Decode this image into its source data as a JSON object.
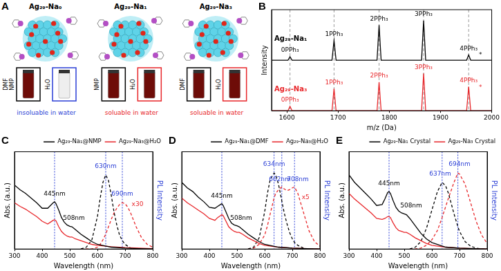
{
  "diagram": {
    "panel": "A",
    "items": [
      {
        "title": "Ag₂₉-Na₀",
        "color": "#2b3fd6",
        "caption": "insoluable in water",
        "vials": [
          {
            "solvents": [
              "DMF",
              "NMP"
            ],
            "soluble": true
          },
          {
            "solvents": [
              "H₂O"
            ],
            "soluble": false
          }
        ]
      },
      {
        "title": "Ag₂₉-Na₁",
        "color": "#e8262a",
        "caption": "soluable in water",
        "vials": [
          {
            "solvents": [
              "NMP"
            ],
            "soluble": true
          },
          {
            "solvents": [
              "H₂O"
            ],
            "soluble": true
          }
        ]
      },
      {
        "title": "Ag₂₉-Na₃",
        "color": "#e8262a",
        "caption": "soluable in water",
        "vials": [
          {
            "solvents": [
              "DMF"
            ],
            "soluble": true
          },
          {
            "solvents": [
              "H₂O"
            ],
            "soluble": true
          }
        ]
      }
    ]
  },
  "chart_data": [
    {
      "panel": "B",
      "type": "line",
      "x_label": "m/z (Da)",
      "y_label": "Intensity",
      "xlim": [
        1570,
        2000
      ],
      "xticks": [
        1600,
        1700,
        1800,
        1900,
        2000
      ],
      "ylim": [
        0,
        2.3
      ],
      "yticks": [],
      "grid": false,
      "tick_labels": "x",
      "vlines": [
        1606,
        1692,
        1780,
        1867,
        1955
      ],
      "series": [
        {
          "name": "Ag₂₉-Na₁",
          "color": "#000000",
          "x": [
            1570,
            1602,
            1606,
            1610,
            1688,
            1692,
            1696,
            1776,
            1780,
            1784,
            1863,
            1867,
            1871,
            1951,
            1955,
            1959,
            2000
          ],
          "values": [
            1.15,
            1.15,
            1.23,
            1.15,
            1.15,
            1.6,
            1.15,
            1.15,
            1.95,
            1.15,
            1.15,
            2.05,
            1.15,
            1.15,
            1.27,
            1.15,
            1.15
          ]
        },
        {
          "name": "Ag₂₉-Na₃",
          "color": "#e8262a",
          "x": [
            1570,
            1602,
            1606,
            1610,
            1688,
            1692,
            1696,
            1776,
            1780,
            1784,
            1863,
            1867,
            1871,
            1951,
            1955,
            1959,
            2000
          ],
          "values": [
            0,
            0,
            0.1,
            0,
            0,
            0.5,
            0,
            0,
            0.65,
            0,
            0,
            0.85,
            0,
            0,
            0.55,
            0,
            0
          ]
        }
      ],
      "annotations": [
        {
          "x": 1606,
          "y": 1.3,
          "text": "0PPh₃",
          "color": "#000000"
        },
        {
          "x": 1692,
          "y": 1.67,
          "text": "1PPh₃",
          "color": "#000000"
        },
        {
          "x": 1780,
          "y": 2.02,
          "text": "2PPh₃",
          "color": "#000000"
        },
        {
          "x": 1867,
          "y": 2.12,
          "text": "3PPh₃",
          "color": "#000000"
        },
        {
          "x": 1955,
          "y": 1.34,
          "text": "4PPh₃",
          "color": "#000000"
        },
        {
          "x": 1978,
          "y": 1.2,
          "text": "*",
          "color": "#000000"
        },
        {
          "x": 1606,
          "y": 0.17,
          "text": "0PPh₃",
          "color": "#e8262a"
        },
        {
          "x": 1692,
          "y": 0.57,
          "text": "1PPh₃",
          "color": "#e8262a"
        },
        {
          "x": 1780,
          "y": 0.72,
          "text": "2PPh₃",
          "color": "#e8262a"
        },
        {
          "x": 1867,
          "y": 0.92,
          "text": "3PPh₃",
          "color": "#e8262a"
        },
        {
          "x": 1955,
          "y": 0.62,
          "text": "4PPh₃",
          "color": "#e8262a"
        },
        {
          "x": 1978,
          "y": 0.45,
          "text": "*",
          "color": "#e8262a"
        }
      ]
    },
    {
      "panel": "C",
      "type": "line",
      "x_label": "Wavelength (nm)",
      "y_label": "Abs. (a.u.)",
      "y2_label": "PL Intensity",
      "xlim": [
        300,
        800
      ],
      "xticks": [
        300,
        400,
        500,
        600,
        700,
        800
      ],
      "ylim": [
        0,
        1.05
      ],
      "yticks": [],
      "y2lim": [
        0,
        1.05
      ],
      "y2ticks": [],
      "grid": false,
      "tick_labels": "x",
      "legend": "top-right",
      "vlines": [
        445,
        630,
        690
      ],
      "series": [
        {
          "color": "#000000",
          "line_style": "solid",
          "x": [
            300,
            320,
            340,
            360,
            380,
            400,
            420,
            430,
            440,
            445,
            450,
            460,
            470,
            480,
            490,
            500,
            508,
            520,
            540,
            560,
            580,
            600,
            650,
            700,
            750,
            800
          ],
          "values": [
            0.69,
            0.64,
            0.6,
            0.55,
            0.5,
            0.44,
            0.44,
            0.47,
            0.5,
            0.51,
            0.49,
            0.42,
            0.34,
            0.29,
            0.26,
            0.245,
            0.24,
            0.21,
            0.16,
            0.12,
            0.08,
            0.05,
            0.02,
            0.01,
            0.005,
            0
          ]
        },
        {
          "color": "#e8262a",
          "line_style": "solid",
          "x": [
            300,
            320,
            340,
            360,
            380,
            400,
            420,
            430,
            440,
            445,
            450,
            460,
            470,
            480,
            490,
            500,
            508,
            520,
            540,
            560,
            580,
            600,
            650,
            700,
            750,
            800
          ],
          "values": [
            0.5,
            0.46,
            0.43,
            0.39,
            0.35,
            0.3,
            0.27,
            0.29,
            0.31,
            0.315,
            0.305,
            0.24,
            0.19,
            0.16,
            0.14,
            0.13,
            0.13,
            0.11,
            0.09,
            0.07,
            0.05,
            0.04,
            0.025,
            0.015,
            0.01,
            0.005
          ]
        },
        {
          "name": "Ag₂₉-Na₁@NMP",
          "color": "#000000",
          "line_style": "dashed",
          "axis": "y2",
          "x": [
            540,
            560,
            580,
            600,
            610,
            620,
            630,
            640,
            650,
            660,
            670,
            680,
            690,
            700,
            710,
            720,
            740,
            760,
            780,
            800
          ],
          "values": [
            0,
            0.02,
            0.1,
            0.35,
            0.55,
            0.72,
            0.8,
            0.74,
            0.58,
            0.4,
            0.26,
            0.15,
            0.09,
            0.05,
            0.03,
            0.01,
            0,
            0,
            0,
            0
          ]
        },
        {
          "name": "Ag₂₉-Na₃@H₂O",
          "color": "#e8262a",
          "line_style": "dashed",
          "axis": "y2",
          "x": [
            540,
            560,
            580,
            600,
            610,
            620,
            630,
            640,
            650,
            660,
            670,
            680,
            690,
            700,
            710,
            720,
            740,
            760,
            780,
            800
          ],
          "values": [
            0,
            0,
            0,
            0.02,
            0.05,
            0.1,
            0.16,
            0.24,
            0.32,
            0.39,
            0.44,
            0.48,
            0.5,
            0.49,
            0.45,
            0.39,
            0.24,
            0.12,
            0.05,
            0.02
          ]
        }
      ],
      "annotations": [
        {
          "x": 445,
          "y": 0.56,
          "text": "445nm",
          "color": "#000000"
        },
        {
          "x": 515,
          "y": 0.3,
          "text": "508nm",
          "color": "#000000"
        },
        {
          "x": 630,
          "y": 0.86,
          "text": "630nm",
          "color": "#2b3fd6"
        },
        {
          "x": 690,
          "y": 0.56,
          "text": "690nm",
          "color": "#2b3fd6"
        },
        {
          "x": 745,
          "y": 0.45,
          "text": "x30",
          "color": "#e8262a"
        }
      ]
    },
    {
      "panel": "D",
      "type": "line",
      "x_label": "Wavelength (nm)",
      "y_label": "Abs. (a.u.)",
      "y2_label": "PL Intensity",
      "xlim": [
        300,
        800
      ],
      "xticks": [
        300,
        400,
        500,
        600,
        700,
        800
      ],
      "ylim": [
        0,
        1.05
      ],
      "yticks": [],
      "y2lim": [
        0,
        1.05
      ],
      "y2ticks": [],
      "grid": false,
      "tick_labels": "x",
      "legend": "top-right",
      "vlines": [
        445,
        634,
        662,
        708
      ],
      "series": [
        {
          "color": "#000000",
          "line_style": "solid",
          "x": [
            300,
            320,
            340,
            360,
            380,
            400,
            420,
            430,
            440,
            445,
            450,
            460,
            470,
            480,
            490,
            500,
            508,
            520,
            540,
            560,
            580,
            600,
            650,
            700,
            750,
            800
          ],
          "values": [
            0.72,
            0.66,
            0.62,
            0.56,
            0.51,
            0.45,
            0.44,
            0.46,
            0.48,
            0.49,
            0.47,
            0.4,
            0.33,
            0.28,
            0.26,
            0.25,
            0.24,
            0.21,
            0.16,
            0.12,
            0.08,
            0.05,
            0.02,
            0.01,
            0.005,
            0
          ]
        },
        {
          "color": "#e8262a",
          "line_style": "solid",
          "x": [
            300,
            320,
            340,
            360,
            380,
            400,
            420,
            430,
            440,
            445,
            450,
            460,
            470,
            480,
            490,
            500,
            508,
            520,
            540,
            560,
            580,
            600,
            650,
            700,
            750,
            800
          ],
          "values": [
            0.55,
            0.5,
            0.46,
            0.42,
            0.38,
            0.33,
            0.31,
            0.34,
            0.36,
            0.37,
            0.36,
            0.3,
            0.24,
            0.21,
            0.19,
            0.18,
            0.18,
            0.16,
            0.12,
            0.09,
            0.06,
            0.04,
            0.02,
            0.01,
            0.005,
            0
          ]
        },
        {
          "name": "Ag₂₉-Na₁@DMF",
          "color": "#000000",
          "line_style": "dashed",
          "axis": "y2",
          "x": [
            540,
            560,
            580,
            600,
            610,
            620,
            634,
            640,
            650,
            662,
            670,
            680,
            690,
            700,
            708,
            720,
            740,
            760,
            780,
            800
          ],
          "values": [
            0,
            0.02,
            0.12,
            0.4,
            0.6,
            0.75,
            0.82,
            0.8,
            0.7,
            0.52,
            0.4,
            0.28,
            0.18,
            0.11,
            0.07,
            0.04,
            0.01,
            0,
            0,
            0
          ]
        },
        {
          "name": "Ag₂₉-Na₃@H₂O",
          "color": "#e8262a",
          "line_style": "dashed",
          "axis": "y2",
          "x": [
            540,
            560,
            580,
            600,
            610,
            620,
            634,
            640,
            650,
            662,
            670,
            680,
            690,
            700,
            708,
            720,
            740,
            760,
            780,
            800
          ],
          "values": [
            0,
            0.01,
            0.05,
            0.15,
            0.25,
            0.38,
            0.55,
            0.6,
            0.64,
            0.67,
            0.65,
            0.63,
            0.64,
            0.66,
            0.67,
            0.6,
            0.4,
            0.2,
            0.08,
            0.03
          ]
        }
      ],
      "annotations": [
        {
          "x": 445,
          "y": 0.54,
          "text": "445nm",
          "color": "#000000"
        },
        {
          "x": 515,
          "y": 0.3,
          "text": "508nm",
          "color": "#000000"
        },
        {
          "x": 634,
          "y": 0.88,
          "text": "634nm",
          "color": "#2b3fd6"
        },
        {
          "x": 655,
          "y": 0.72,
          "text": "662nm",
          "color": "#2b3fd6"
        },
        {
          "x": 720,
          "y": 0.72,
          "text": "708nm",
          "color": "#2b3fd6"
        },
        {
          "x": 748,
          "y": 0.52,
          "text": "x5",
          "color": "#e8262a"
        }
      ]
    },
    {
      "panel": "E",
      "type": "line",
      "x_label": "Wavelength (nm)",
      "y_label": "Abs. (a.u.)",
      "y2_label": "PL Intensity",
      "xlim": [
        300,
        800
      ],
      "xticks": [
        300,
        400,
        500,
        600,
        700,
        800
      ],
      "ylim": [
        0,
        1.05
      ],
      "yticks": [],
      "y2lim": [
        0,
        1.05
      ],
      "y2ticks": [],
      "grid": false,
      "tick_labels": "x",
      "legend": "top-right",
      "vlines": [
        445,
        637,
        694
      ],
      "series": [
        {
          "color": "#000000",
          "line_style": "solid",
          "x": [
            300,
            320,
            340,
            360,
            380,
            400,
            420,
            430,
            440,
            445,
            450,
            460,
            470,
            480,
            490,
            500,
            508,
            520,
            540,
            560,
            580,
            600,
            650,
            700,
            750,
            800
          ],
          "values": [
            0.8,
            0.72,
            0.66,
            0.6,
            0.54,
            0.47,
            0.48,
            0.54,
            0.61,
            0.62,
            0.6,
            0.52,
            0.45,
            0.41,
            0.39,
            0.38,
            0.37,
            0.33,
            0.25,
            0.17,
            0.11,
            0.07,
            0.02,
            0.01,
            0.005,
            0
          ]
        },
        {
          "color": "#e8262a",
          "line_style": "solid",
          "x": [
            300,
            320,
            340,
            360,
            380,
            400,
            420,
            430,
            440,
            445,
            450,
            460,
            470,
            480,
            490,
            500,
            508,
            520,
            540,
            560,
            580,
            600,
            650,
            700,
            750,
            800
          ],
          "values": [
            0.6,
            0.54,
            0.49,
            0.44,
            0.39,
            0.33,
            0.32,
            0.33,
            0.35,
            0.35,
            0.34,
            0.28,
            0.23,
            0.2,
            0.19,
            0.18,
            0.18,
            0.16,
            0.12,
            0.09,
            0.06,
            0.04,
            0.02,
            0.01,
            0.005,
            0
          ]
        },
        {
          "name": "Ag₂₉-Na₁ Crystal",
          "color": "#000000",
          "line_style": "dashed",
          "axis": "y2",
          "x": [
            520,
            540,
            560,
            580,
            600,
            620,
            637,
            650,
            660,
            680,
            694,
            700,
            720,
            740,
            760,
            780,
            800
          ],
          "values": [
            0,
            0.02,
            0.08,
            0.22,
            0.42,
            0.62,
            0.72,
            0.68,
            0.6,
            0.38,
            0.24,
            0.19,
            0.08,
            0.03,
            0.01,
            0,
            0
          ]
        },
        {
          "name": "Ag₂₉-Na₃ Crystal",
          "color": "#e8262a",
          "line_style": "dashed",
          "axis": "y2",
          "x": [
            520,
            540,
            560,
            580,
            600,
            620,
            637,
            650,
            660,
            680,
            694,
            700,
            720,
            740,
            760,
            780,
            800
          ],
          "values": [
            0,
            0,
            0.01,
            0.04,
            0.1,
            0.2,
            0.34,
            0.46,
            0.55,
            0.72,
            0.82,
            0.81,
            0.7,
            0.5,
            0.3,
            0.15,
            0.06
          ]
        }
      ],
      "annotations": [
        {
          "x": 445,
          "y": 0.67,
          "text": "445nm",
          "color": "#000000"
        },
        {
          "x": 525,
          "y": 0.43,
          "text": "508nm",
          "color": "#000000"
        },
        {
          "x": 630,
          "y": 0.78,
          "text": "637nm",
          "color": "#2b3fd6"
        },
        {
          "x": 700,
          "y": 0.88,
          "text": "694nm",
          "color": "#2b3fd6"
        }
      ]
    }
  ]
}
